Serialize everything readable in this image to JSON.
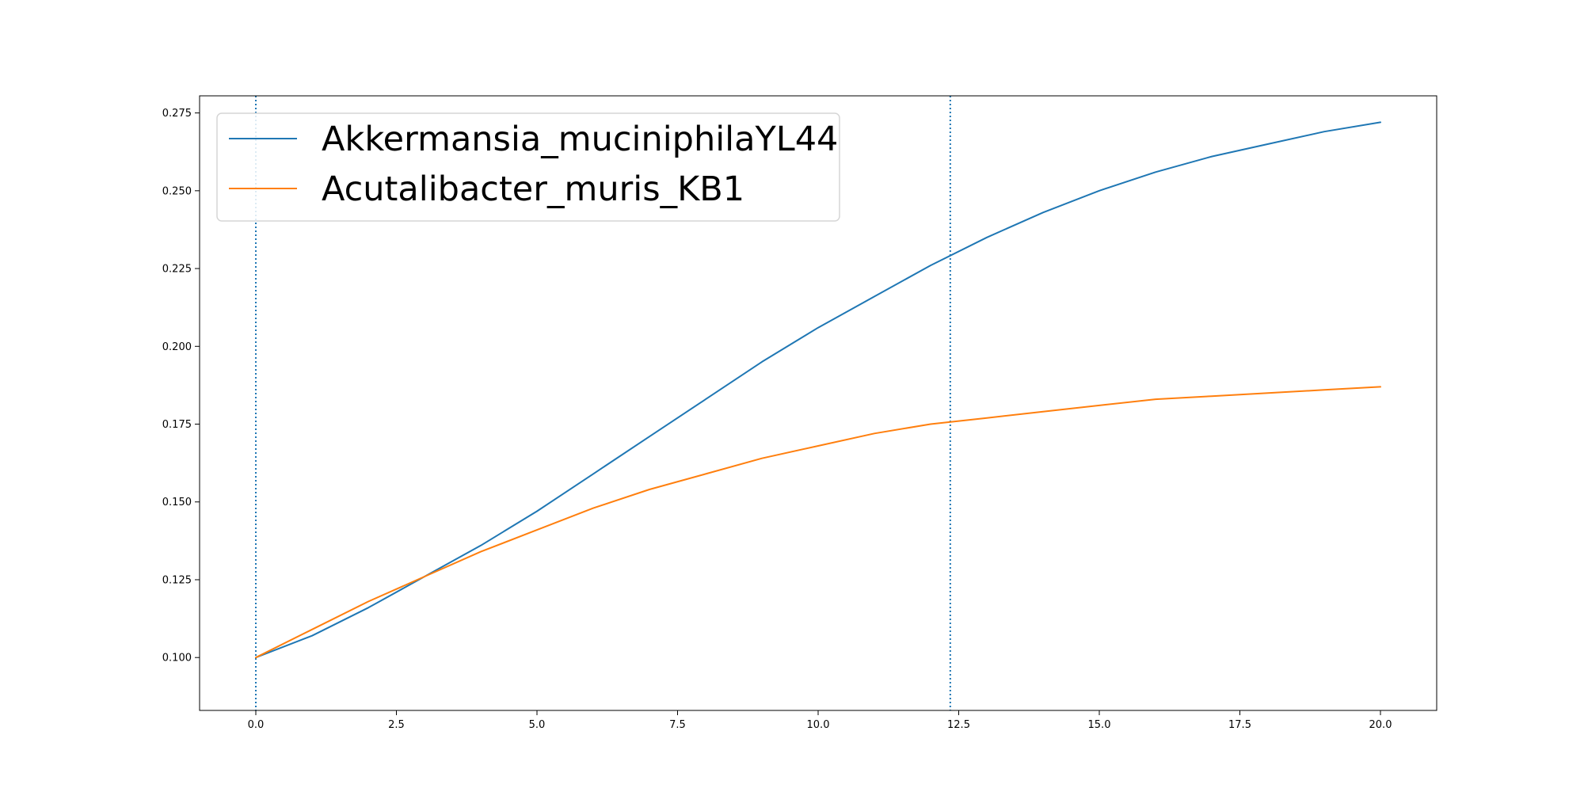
{
  "chart_data": {
    "type": "line",
    "title": "",
    "xlabel": "",
    "ylabel": "",
    "xlim": [
      -1.0,
      21.0
    ],
    "ylim": [
      0.083,
      0.2805
    ],
    "x_ticks": [
      "0.0",
      "2.5",
      "5.0",
      "7.5",
      "10.0",
      "12.5",
      "15.0",
      "17.5",
      "20.0"
    ],
    "y_ticks": [
      "0.100",
      "0.125",
      "0.150",
      "0.175",
      "0.200",
      "0.225",
      "0.250",
      "0.275"
    ],
    "grid": false,
    "legend_position": "upper-left",
    "vertical_lines": [
      {
        "x": 0.0,
        "style": "dotted",
        "color": "#1f77b4"
      },
      {
        "x": 12.35,
        "style": "dotted",
        "color": "#1f77b4"
      }
    ],
    "series": [
      {
        "name": "Akkermansia_muciniphilaYL44",
        "color": "#1f77b4",
        "x": [
          0,
          1,
          2,
          3,
          4,
          5,
          6,
          7,
          8,
          9,
          10,
          11,
          12,
          13,
          14,
          15,
          16,
          17,
          18,
          19,
          20
        ],
        "y": [
          0.1,
          0.107,
          0.116,
          0.126,
          0.136,
          0.147,
          0.159,
          0.171,
          0.183,
          0.195,
          0.206,
          0.216,
          0.226,
          0.235,
          0.243,
          0.25,
          0.256,
          0.261,
          0.265,
          0.269,
          0.272
        ]
      },
      {
        "name": "Acutalibacter_muris_KB1",
        "color": "#ff7f0e",
        "x": [
          0,
          1,
          2,
          3,
          4,
          5,
          6,
          7,
          8,
          9,
          10,
          11,
          12,
          13,
          14,
          15,
          16,
          17,
          18,
          19,
          20
        ],
        "y": [
          0.1,
          0.109,
          0.118,
          0.126,
          0.134,
          0.141,
          0.148,
          0.154,
          0.159,
          0.164,
          0.168,
          0.172,
          0.175,
          0.177,
          0.179,
          0.181,
          0.183,
          0.184,
          0.185,
          0.186,
          0.187
        ]
      }
    ]
  }
}
